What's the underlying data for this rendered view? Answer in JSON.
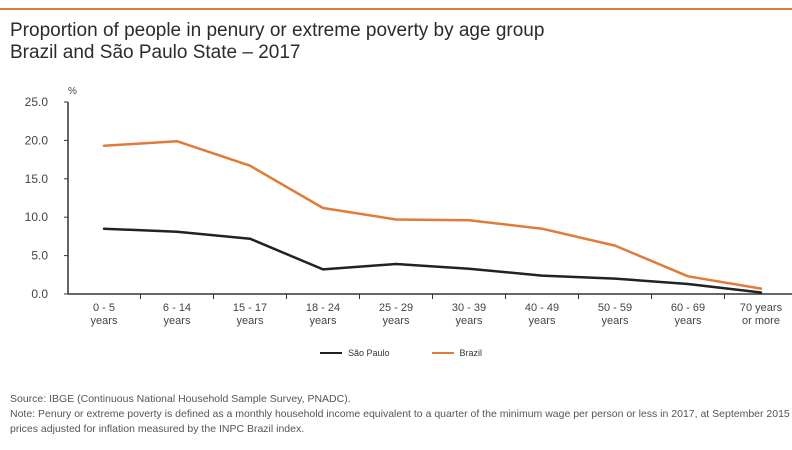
{
  "title_line1": "Proportion of people in penury or extreme poverty by age group",
  "title_line2": "Brazil and São Paulo State – 2017",
  "unit_label": "%",
  "source": "Source: IBGE (Continuous National Household Sample Survey, PNADC).",
  "note": "Note: Penury or extreme poverty is defined as a monthly household income equivalent to a quarter of the minimum wage per person or less in 2017, at September 2015 prices adjusted for inflation measured by the INPC Brazil index.",
  "colors": {
    "accent": "#e07b39",
    "sao_paulo": "#222222",
    "brazil": "#e07b39"
  },
  "chart_data": {
    "type": "line",
    "ylabel": "%",
    "ylim": [
      0,
      25
    ],
    "yticks": [
      "0.0",
      "5.0",
      "10.0",
      "15.0",
      "20.0",
      "25.0"
    ],
    "categories": [
      [
        "0 - 5",
        "years"
      ],
      [
        "6 - 14",
        "years"
      ],
      [
        "15 - 17",
        "years"
      ],
      [
        "18 - 24",
        "years"
      ],
      [
        "25 - 29",
        "years"
      ],
      [
        "30 - 39",
        "years"
      ],
      [
        "40 - 49",
        "years"
      ],
      [
        "50 - 59",
        "years"
      ],
      [
        "60 - 69",
        "years"
      ],
      [
        "70 years",
        "or more"
      ]
    ],
    "series": [
      {
        "name": "São Paulo",
        "color": "#222222",
        "values": [
          8.5,
          8.1,
          7.2,
          3.2,
          3.9,
          3.3,
          2.4,
          2.0,
          1.3,
          0.2
        ]
      },
      {
        "name": "Brazil",
        "color": "#e07b39",
        "values": [
          19.3,
          19.9,
          16.7,
          11.2,
          9.7,
          9.6,
          8.5,
          6.3,
          2.3,
          0.7
        ]
      }
    ],
    "legend_position": "bottom",
    "grid": false
  }
}
